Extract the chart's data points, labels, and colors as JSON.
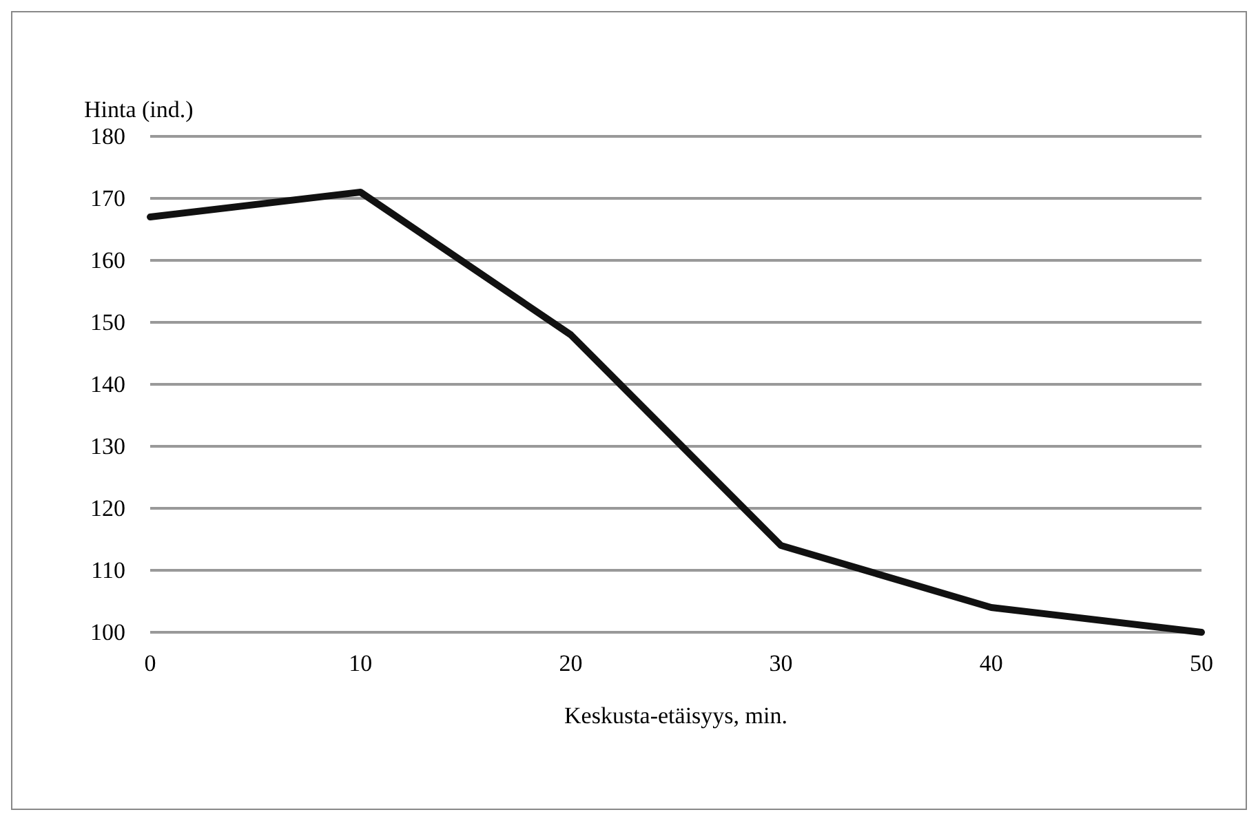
{
  "chart_data": {
    "type": "line",
    "xlabel": "Keskusta-etäisyys, min.",
    "ylabel": "Hinta (ind.)",
    "x": [
      0,
      10,
      20,
      30,
      40,
      50
    ],
    "series": [
      {
        "color": "#111111",
        "values": [
          167,
          171,
          148,
          114,
          104,
          100
        ]
      }
    ],
    "xlim": [
      0,
      50
    ],
    "xticks": [
      0,
      10,
      20,
      30,
      40,
      50
    ],
    "ylim": [
      100,
      180
    ],
    "yticks": [
      100,
      110,
      120,
      130,
      140,
      150,
      160,
      170,
      180
    ],
    "grid": "y",
    "marker": "none",
    "line_style": "solid"
  }
}
